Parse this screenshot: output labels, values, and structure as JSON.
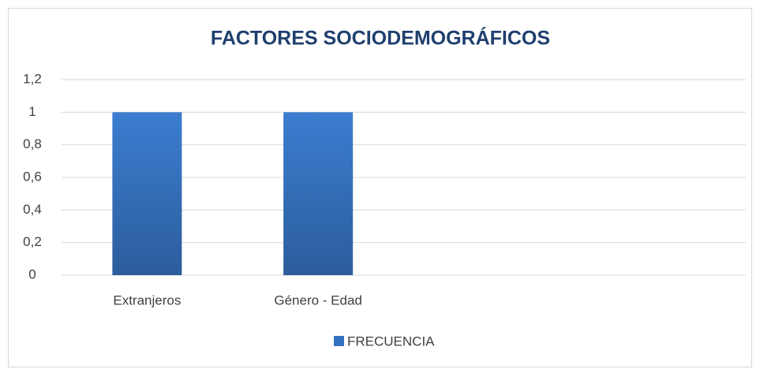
{
  "chart_data": {
    "type": "bar",
    "title": "FACTORES SOCIODEMOGRÁFICOS",
    "categories": [
      "Extranjeros",
      "Género - Edad",
      null,
      null
    ],
    "series": [
      {
        "name": "FRECUENCIA",
        "color": "#3471c0",
        "values": [
          1,
          1,
          null,
          null
        ]
      }
    ],
    "ylim": [
      0,
      1.2
    ],
    "yticks": [
      0,
      {
        "value": 0.2,
        "label": "0,2"
      },
      {
        "value": 0.4,
        "label": "0,4"
      },
      {
        "value": 0.6,
        "label": "0,6"
      },
      {
        "value": 0.8,
        "label": "0,8"
      },
      1,
      {
        "value": 1.2,
        "label": "1,2"
      }
    ],
    "grid": true,
    "legend": "bottom"
  }
}
